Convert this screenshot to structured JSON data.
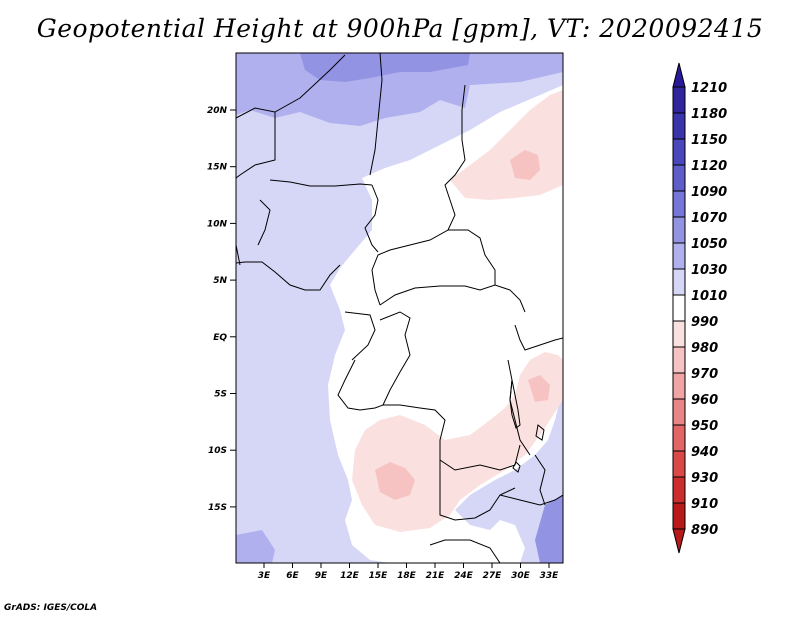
{
  "title": "Geopotential Height at 900hPa [gpm], VT: 2020092415",
  "map": {
    "lat_ticks": [
      "20N",
      "15N",
      "10N",
      "5N",
      "EQ",
      "5S",
      "10S",
      "15S"
    ],
    "lon_ticks": [
      "3E",
      "6E",
      "9E",
      "12E",
      "15E",
      "18E",
      "21E",
      "24E",
      "27E",
      "30E",
      "33E"
    ]
  },
  "colorbar": {
    "labels": [
      "1210",
      "1180",
      "1150",
      "1120",
      "1090",
      "1070",
      "1050",
      "1030",
      "1010",
      "990",
      "980",
      "970",
      "960",
      "950",
      "940",
      "930",
      "910",
      "890"
    ],
    "colors": [
      "#2a1a9a",
      "#30259f",
      "#3a34ac",
      "#4a46bb",
      "#5e5dca",
      "#7675d8",
      "#9393e4",
      "#b0b0ee",
      "#d6d6f7",
      "#ffffff",
      "#fbe0e0",
      "#f6c2c2",
      "#f0a4a4",
      "#e98585",
      "#e26666",
      "#da4848",
      "#cc2e2e",
      "#b81a1a"
    ]
  },
  "footer": "GrADS: IGES/COLA"
}
